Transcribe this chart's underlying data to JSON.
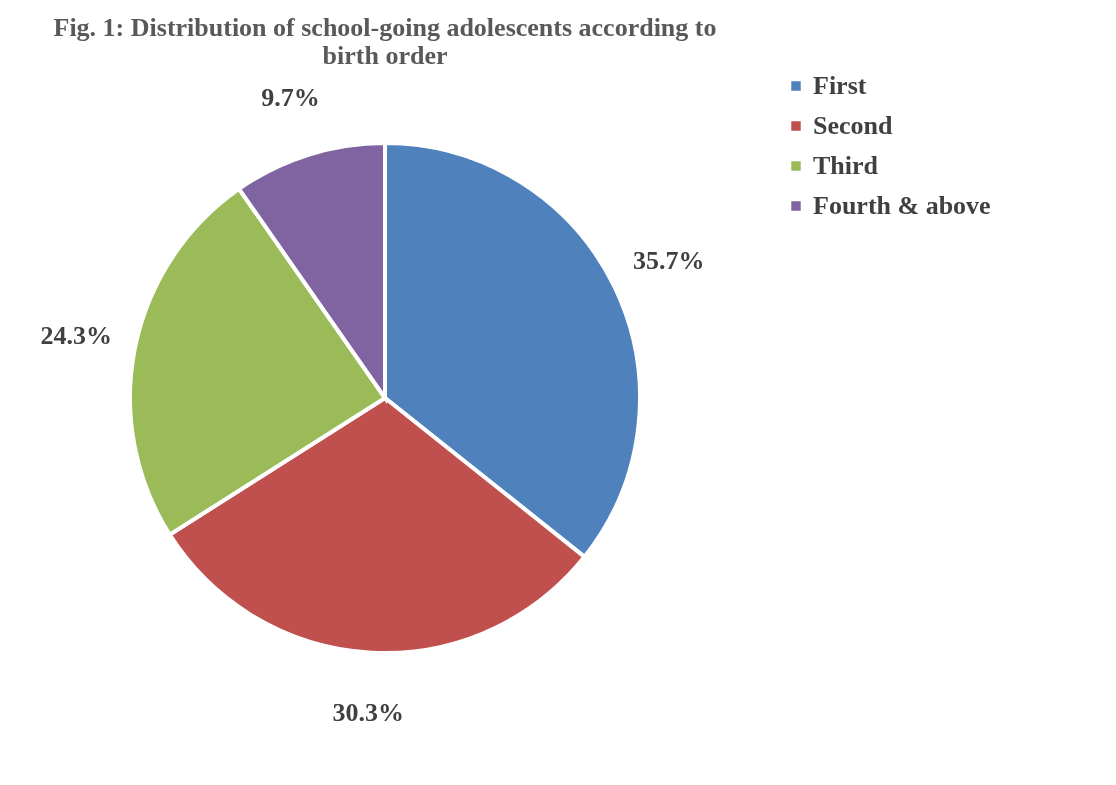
{
  "chart_data": {
    "type": "pie",
    "title": "Fig. 1: Distribution of school-going adolescents according to birth order",
    "categories": [
      "First",
      "Second",
      "Third",
      "Fourth & above"
    ],
    "values": [
      35.7,
      30.3,
      24.3,
      9.7
    ],
    "colors": [
      "#4f81bd",
      "#c0504d",
      "#9bbb59",
      "#8064a2"
    ],
    "value_labels": [
      "35.7%",
      "30.3%",
      "24.3%",
      "9.7%"
    ],
    "legend": "right"
  }
}
